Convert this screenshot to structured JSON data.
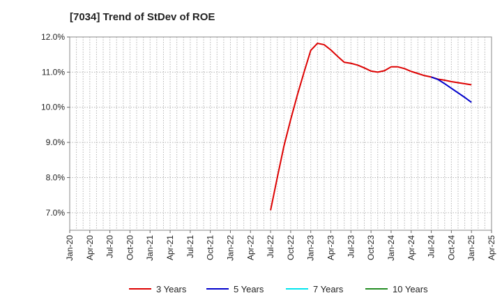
{
  "chart_data": {
    "type": "line",
    "title": "[7034]  Trend of StDev of ROE",
    "xlabel": "",
    "ylabel": "",
    "x_ticks": [
      "Jan-20",
      "Apr-20",
      "Jul-20",
      "Oct-20",
      "Jan-21",
      "Apr-21",
      "Jul-21",
      "Oct-21",
      "Jan-22",
      "Apr-22",
      "Jul-22",
      "Oct-22",
      "Jan-23",
      "Apr-23",
      "Jul-23",
      "Oct-23",
      "Jan-24",
      "Apr-24",
      "Jul-24",
      "Oct-24",
      "Jan-25",
      "Apr-25"
    ],
    "y_ticks": [
      "7.0%",
      "8.0%",
      "9.0%",
      "10.0%",
      "11.0%",
      "12.0%"
    ],
    "y_tick_values": [
      7,
      8,
      9,
      10,
      11,
      12
    ],
    "ylim": [
      6.5,
      12
    ],
    "xlim": [
      "Jan-20",
      "Apr-25"
    ],
    "grid": true,
    "legend_position": "bottom",
    "series": [
      {
        "name": "3 Years",
        "color": "#dd0000",
        "points": [
          [
            "Jul-22",
            7.07
          ],
          [
            "Aug-22",
            8.0
          ],
          [
            "Sep-22",
            8.9
          ],
          [
            "Oct-22",
            9.65
          ],
          [
            "Nov-22",
            10.35
          ],
          [
            "Dec-22",
            11.0
          ],
          [
            "Jan-23",
            11.62
          ],
          [
            "Feb-23",
            11.82
          ],
          [
            "Mar-23",
            11.78
          ],
          [
            "Apr-23",
            11.63
          ],
          [
            "May-23",
            11.45
          ],
          [
            "Jun-23",
            11.28
          ],
          [
            "Jul-23",
            11.25
          ],
          [
            "Aug-23",
            11.2
          ],
          [
            "Sep-23",
            11.12
          ],
          [
            "Oct-23",
            11.03
          ],
          [
            "Nov-23",
            11.0
          ],
          [
            "Dec-23",
            11.04
          ],
          [
            "Jan-24",
            11.15
          ],
          [
            "Feb-24",
            11.15
          ],
          [
            "Mar-24",
            11.1
          ],
          [
            "Apr-24",
            11.02
          ],
          [
            "May-24",
            10.96
          ],
          [
            "Jun-24",
            10.9
          ],
          [
            "Jul-24",
            10.86
          ],
          [
            "Aug-24",
            10.8
          ],
          [
            "Sep-24",
            10.77
          ],
          [
            "Oct-24",
            10.73
          ],
          [
            "Nov-24",
            10.7
          ],
          [
            "Dec-24",
            10.67
          ],
          [
            "Jan-25",
            10.64
          ]
        ]
      },
      {
        "name": "5 Years",
        "color": "#0000cc",
        "points": [
          [
            "Jul-24",
            10.86
          ],
          [
            "Aug-24",
            10.79
          ],
          [
            "Sep-24",
            10.67
          ],
          [
            "Oct-24",
            10.54
          ],
          [
            "Nov-24",
            10.41
          ],
          [
            "Dec-24",
            10.28
          ],
          [
            "Jan-25",
            10.14
          ]
        ]
      },
      {
        "name": "7 Years",
        "color": "#00e5ee",
        "points": []
      },
      {
        "name": "10 Years",
        "color": "#228b22",
        "points": []
      }
    ]
  }
}
